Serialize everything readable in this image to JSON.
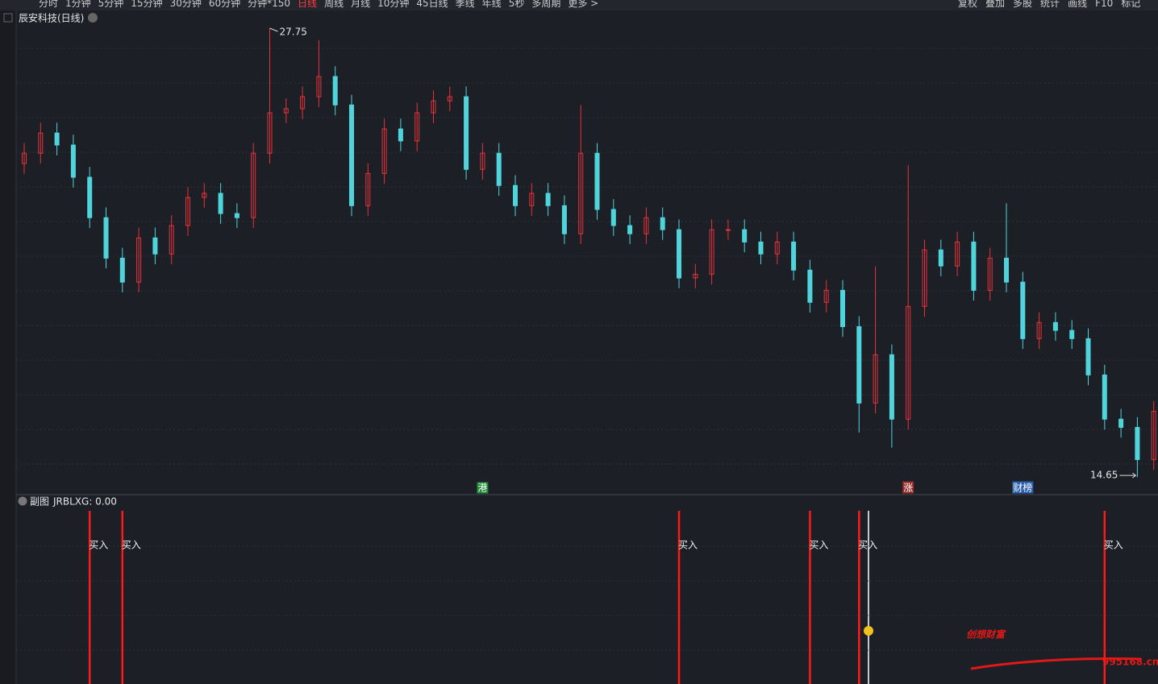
{
  "toolbar": {
    "periods": [
      "分时",
      "1分钟",
      "5分钟",
      "15分钟",
      "30分钟",
      "60分钟",
      "分钟*150",
      "日线",
      "周线",
      "月线",
      "10分钟",
      "45日线",
      "季线",
      "年线",
      "5秒",
      "多周期",
      "更多 >"
    ],
    "active": 7,
    "tools": [
      "复权",
      "叠加",
      "多股",
      "统计",
      "画线",
      "F10",
      "标记"
    ]
  },
  "chart_data": {
    "type": "candlestick",
    "title": "辰安科技(日线)",
    "open": [
      23.8,
      24.1,
      24.69,
      24.34,
      23.4,
      22.22,
      21.04,
      20.34,
      21.63,
      21.16,
      21.99,
      22.81,
      22.93,
      22.34,
      22.22,
      24.1,
      25.28,
      25.4,
      25.75,
      26.34,
      25.51,
      22.57,
      23.51,
      24.81,
      24.46,
      25.28,
      25.63,
      25.75,
      23.63,
      24.1,
      23.16,
      22.57,
      22.93,
      22.57,
      21.75,
      24.1,
      22.46,
      21.99,
      21.75,
      22.22,
      21.87,
      20.46,
      20.57,
      21.87,
      21.87,
      21.51,
      21.16,
      21.51,
      20.69,
      19.75,
      20.1,
      19.04,
      16.81,
      18.22,
      16.34,
      19.63,
      21.28,
      20.81,
      21.51,
      20.1,
      21.04,
      20.34,
      18.69,
      19.16,
      18.93,
      18.69,
      17.63,
      16.34,
      16.1,
      15.16
    ],
    "high": [
      24.4,
      24.99,
      24.99,
      24.64,
      23.7,
      22.52,
      21.34,
      21.93,
      21.93,
      22.29,
      23.11,
      23.23,
      23.23,
      22.64,
      24.4,
      27.75,
      25.7,
      26.05,
      27.4,
      26.64,
      25.81,
      23.81,
      25.11,
      25.11,
      25.58,
      25.93,
      26.05,
      26.05,
      24.4,
      24.4,
      23.46,
      23.23,
      23.23,
      22.87,
      25.51,
      24.4,
      22.76,
      22.29,
      22.52,
      22.52,
      22.17,
      20.87,
      22.17,
      22.17,
      22.17,
      21.81,
      21.81,
      21.81,
      20.99,
      20.4,
      20.4,
      19.34,
      20.8,
      18.52,
      23.75,
      21.58,
      21.58,
      21.81,
      21.81,
      21.34,
      22.64,
      20.64,
      19.46,
      19.46,
      19.23,
      18.99,
      17.93,
      16.64,
      16.4,
      16.87
    ],
    "low": [
      23.5,
      23.8,
      24.04,
      23.1,
      21.92,
      20.74,
      20.04,
      20.04,
      20.86,
      20.86,
      21.69,
      22.51,
      22.04,
      21.92,
      21.92,
      23.8,
      24.98,
      25.1,
      25.45,
      25.21,
      22.27,
      22.27,
      23.21,
      24.16,
      24.16,
      24.98,
      25.33,
      23.33,
      23.33,
      22.86,
      22.27,
      22.27,
      22.27,
      21.45,
      21.45,
      22.16,
      21.69,
      21.45,
      21.45,
      21.57,
      20.16,
      20.16,
      20.27,
      21.57,
      21.21,
      20.86,
      20.86,
      20.39,
      19.45,
      19.45,
      18.74,
      15.95,
      16.51,
      15.51,
      16.04,
      19.33,
      20.51,
      20.51,
      19.8,
      19.8,
      20.04,
      18.39,
      18.39,
      18.63,
      18.39,
      17.33,
      16.04,
      15.8,
      14.65,
      14.86
    ],
    "close": [
      24.1,
      24.69,
      24.34,
      23.4,
      22.22,
      21.04,
      20.34,
      21.63,
      21.16,
      21.99,
      22.81,
      22.93,
      22.34,
      22.22,
      24.1,
      25.28,
      25.4,
      25.75,
      26.34,
      25.51,
      22.57,
      23.51,
      24.81,
      24.46,
      25.28,
      25.63,
      25.75,
      23.63,
      24.1,
      23.16,
      22.57,
      22.93,
      22.57,
      21.75,
      24.1,
      22.46,
      21.99,
      21.75,
      22.22,
      21.87,
      20.46,
      20.57,
      21.87,
      21.87,
      21.51,
      21.16,
      21.51,
      20.69,
      19.75,
      20.1,
      19.04,
      16.81,
      18.22,
      16.34,
      19.63,
      21.28,
      20.81,
      21.51,
      20.1,
      21.04,
      20.34,
      18.69,
      19.16,
      18.93,
      18.69,
      17.63,
      16.34,
      16.1,
      15.16,
      16.57
    ],
    "up_color": "#e8323a",
    "down_color": "#4fd4dc",
    "ylim": [
      14.16,
      28.22
    ],
    "grid": true,
    "max_index": 15,
    "min_index": 68,
    "markers": [
      {
        "text": "港",
        "index": 28,
        "color": "#1f8a36"
      },
      {
        "text": "涨",
        "index": 54,
        "color": "#9a2a2a"
      },
      {
        "text": "财榜",
        "index": 61,
        "color": "#2a5fb0"
      }
    ],
    "indicator": {
      "panel": "副图",
      "name": "JRBLXG: 0.00"
    },
    "signals": {
      "label": "买入",
      "indices": [
        4,
        6,
        40,
        48,
        51,
        66
      ],
      "color": "#ff1a1a"
    }
  },
  "watermark": {
    "title": "创想财富",
    "site": "995168.cn"
  }
}
